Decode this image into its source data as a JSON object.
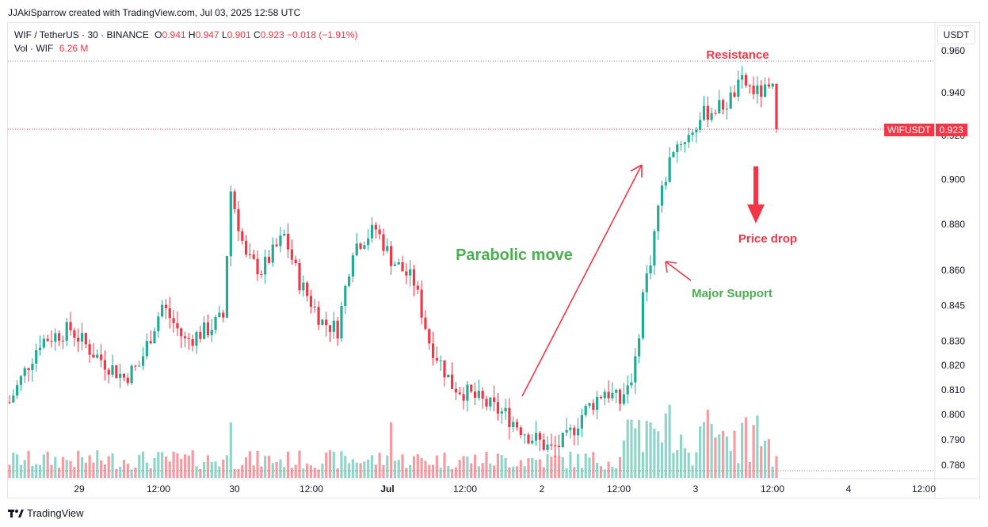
{
  "header": {
    "attribution": "JJAkiSparrow created with TradingView.com, Jul 03, 2025 12:58 UTC"
  },
  "legend": {
    "symbol": "WIF / TetherUS · 30 · BINANCE",
    "o_label": "O",
    "o_value": "0.941",
    "h_label": "H",
    "h_value": "0.947",
    "l_label": "L",
    "l_value": "0.901",
    "c_label": "C",
    "c_value": "0.923",
    "change": "−0.018 (−1.91%)",
    "vol_label": "Vol · WIF",
    "vol_value": "6.26 M"
  },
  "currency_button": "USDT",
  "price_tag": {
    "symbol": "WIFUSDT",
    "value": "0.923"
  },
  "footer": {
    "brand": "TradingView"
  },
  "colors": {
    "up": "#22ab94",
    "down": "#f23645",
    "green_text": "#4caf50",
    "axis_text": "#131722"
  },
  "chart_data": {
    "type": "candlestick",
    "y_ticks": [
      "0.960",
      "0.940",
      "0.920",
      "0.900",
      "0.880",
      "0.860",
      "0.845",
      "0.830",
      "0.820",
      "0.810",
      "0.800",
      "0.790",
      "0.780"
    ],
    "x_ticks": [
      "29",
      "12:00",
      "30",
      "12:00",
      "Jul",
      "12:00",
      "2",
      "12:00",
      "3",
      "12:00",
      "4",
      "12:00"
    ],
    "last_price": 0.923,
    "resistance_level": 0.955,
    "scale": "log",
    "annotations": {
      "parabolic": "Parabolic move",
      "resistance": "Resistance",
      "price_drop": "Price drop",
      "major_support": "Major Support"
    },
    "anchors": [
      {
        "bar": 0,
        "price": 0.805
      },
      {
        "bar": 8,
        "price": 0.83
      },
      {
        "bar": 16,
        "price": 0.835
      },
      {
        "bar": 22,
        "price": 0.825
      },
      {
        "bar": 30,
        "price": 0.815
      },
      {
        "bar": 34,
        "price": 0.82
      },
      {
        "bar": 40,
        "price": 0.845
      },
      {
        "bar": 46,
        "price": 0.83
      },
      {
        "bar": 52,
        "price": 0.835
      },
      {
        "bar": 56,
        "price": 0.84
      },
      {
        "bar": 58,
        "price": 0.895
      },
      {
        "bar": 62,
        "price": 0.865
      },
      {
        "bar": 66,
        "price": 0.86
      },
      {
        "bar": 72,
        "price": 0.875
      },
      {
        "bar": 76,
        "price": 0.855
      },
      {
        "bar": 82,
        "price": 0.838
      },
      {
        "bar": 86,
        "price": 0.835
      },
      {
        "bar": 90,
        "price": 0.87
      },
      {
        "bar": 96,
        "price": 0.878
      },
      {
        "bar": 100,
        "price": 0.865
      },
      {
        "bar": 106,
        "price": 0.855
      },
      {
        "bar": 110,
        "price": 0.83
      },
      {
        "bar": 116,
        "price": 0.812
      },
      {
        "bar": 124,
        "price": 0.805
      },
      {
        "bar": 130,
        "price": 0.8
      },
      {
        "bar": 136,
        "price": 0.792
      },
      {
        "bar": 142,
        "price": 0.786
      },
      {
        "bar": 146,
        "price": 0.79
      },
      {
        "bar": 150,
        "price": 0.8
      },
      {
        "bar": 156,
        "price": 0.81
      },
      {
        "bar": 160,
        "price": 0.805
      },
      {
        "bar": 164,
        "price": 0.82
      },
      {
        "bar": 166,
        "price": 0.85
      },
      {
        "bar": 168,
        "price": 0.865
      },
      {
        "bar": 170,
        "price": 0.888
      },
      {
        "bar": 174,
        "price": 0.915
      },
      {
        "bar": 178,
        "price": 0.92
      },
      {
        "bar": 182,
        "price": 0.93
      },
      {
        "bar": 188,
        "price": 0.935
      },
      {
        "bar": 192,
        "price": 0.945
      },
      {
        "bar": 196,
        "price": 0.94
      },
      {
        "bar": 200,
        "price": 0.941
      },
      {
        "bar": 201,
        "price": 0.923
      }
    ]
  }
}
